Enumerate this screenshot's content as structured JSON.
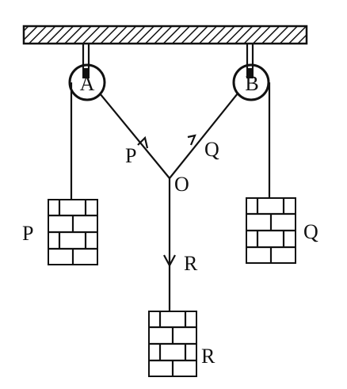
{
  "labels": {
    "pulley_a": "A",
    "pulley_b": "B",
    "junction": "O",
    "tension_p": "P",
    "tension_q": "Q",
    "tension_r": "R",
    "weight_p": "P",
    "weight_q": "Q",
    "weight_r": "R"
  },
  "colors": {
    "ink": "#111111",
    "background": "#ffffff"
  },
  "icons": {
    "ceiling": "hatched-ceiling-icon",
    "pulley": "pulley-icon",
    "weight": "brick-weight-icon",
    "arrow": "arrowhead-icon"
  }
}
